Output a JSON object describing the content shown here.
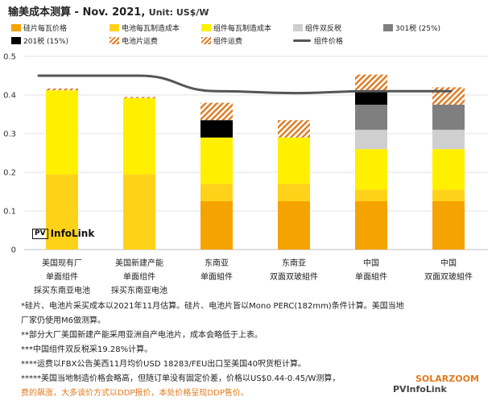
{
  "title": "输美成本测算 - Nov. 2021,",
  "unit": "Unit: US$/W",
  "legend": [
    {
      "label": "硅片每瓦价格",
      "color": "#f5a300",
      "kind": "box"
    },
    {
      "label": "电池每瓦制造成本",
      "color": "#ffd21a",
      "kind": "box"
    },
    {
      "label": "组件每瓦制造成本",
      "color": "#fff000",
      "kind": "box"
    },
    {
      "label": "组件双反税",
      "color": "#cfcfcf",
      "kind": "box"
    },
    {
      "label": "301税 (25%)",
      "color": "#7f7f7f",
      "kind": "box"
    },
    {
      "label": "201税 (15%)",
      "color": "#000000",
      "kind": "box"
    },
    {
      "label": "电池片运费",
      "color": "#e07a1f",
      "kind": "hatch"
    },
    {
      "label": "组件运费",
      "color": "#e07a1f",
      "kind": "hatch"
    },
    {
      "label": "组件价格",
      "color": "#555555",
      "kind": "line"
    }
  ],
  "chart_data": {
    "type": "bar",
    "stacked": true,
    "ylim": [
      0,
      0.5
    ],
    "yticks": [
      "0",
      "0.1",
      "0.2",
      "0.3",
      "0.4",
      "0.5"
    ],
    "categories": [
      [
        "美国现有厂",
        "单面组件",
        "採买东南亚电池"
      ],
      [
        "美国新建产能",
        "单面组件",
        "採买东南亚电池"
      ],
      [
        "东南亚",
        "单面組件"
      ],
      [
        "东南亚",
        "双面双玻組件"
      ],
      [
        "中国",
        "单面組件"
      ],
      [
        "中国",
        "双面双玻組件"
      ]
    ],
    "series": [
      {
        "name": "硅片每瓦价格",
        "color": "#f5a300",
        "values": [
          0,
          0,
          0.125,
          0.125,
          0.125,
          0.125
        ]
      },
      {
        "name": "电池每瓦制造成本",
        "color": "#ffd21a",
        "values": [
          0.195,
          0.195,
          0.045,
          0.045,
          0.03,
          0.03
        ]
      },
      {
        "name": "组件每瓦制造成本",
        "color": "#fff000",
        "values": [
          0.217,
          0.197,
          0.12,
          0.12,
          0.105,
          0.105
        ]
      },
      {
        "name": "组件双反税",
        "color": "#cfcfcf",
        "values": [
          0,
          0,
          0,
          0,
          0.05,
          0.05
        ]
      },
      {
        "name": "301税 (25%)",
        "color": "#7f7f7f",
        "values": [
          0,
          0,
          0,
          0,
          0.065,
          0.065
        ]
      },
      {
        "name": "201税 (15%)",
        "color": "#000000",
        "values": [
          0,
          0,
          0.045,
          0,
          0.033,
          0
        ]
      },
      {
        "name": "电池片运费",
        "color": "#e07a1f",
        "pattern": "hatch",
        "values": [
          0.005,
          0.003,
          0,
          0,
          0,
          0
        ]
      },
      {
        "name": "组件运费",
        "color": "#e07a1f",
        "pattern": "hatch",
        "values": [
          0,
          0,
          0.045,
          0.045,
          0.045,
          0.045
        ]
      }
    ],
    "line": {
      "name": "组件价格",
      "color": "#555555",
      "values": [
        0.45,
        0.45,
        0.41,
        0.405,
        0.41,
        0.41
      ]
    },
    "grid": true
  },
  "notes": [
    {
      "text": "*硅片、电池片采买成本以2021年11月估算。硅片、电池片皆以Mono PERC(182mm)条件计算。美国当地",
      "cls": ""
    },
    {
      "text": "厂家仍使用M6做测算。",
      "cls": ""
    },
    {
      "text": "**部分大厂美国新建产能采用亚洲自产电池片，成本会略低于上表。",
      "cls": ""
    },
    {
      "text": "***中国组件双反税采19.28%计算。",
      "cls": ""
    },
    {
      "text": "****运费以FBX公告美西11月均价USD 18283/FEU出口至美国40呎货柜计算。",
      "cls": ""
    },
    {
      "text": "*****美国当地制造价格会略高，但随订单没有固定价差，价格以US$0.44-0.45/W测算，",
      "cls": ""
    },
    {
      "text": "费的飙涨，大多谈价方式以DDP报价，本处价格呈现DDP售价。",
      "cls": "orange"
    }
  ],
  "logo_text": "InfoLink",
  "logo_badge": "PV",
  "watermark_1": "SOLARZOOM",
  "watermark_2": "PVInfoLink"
}
